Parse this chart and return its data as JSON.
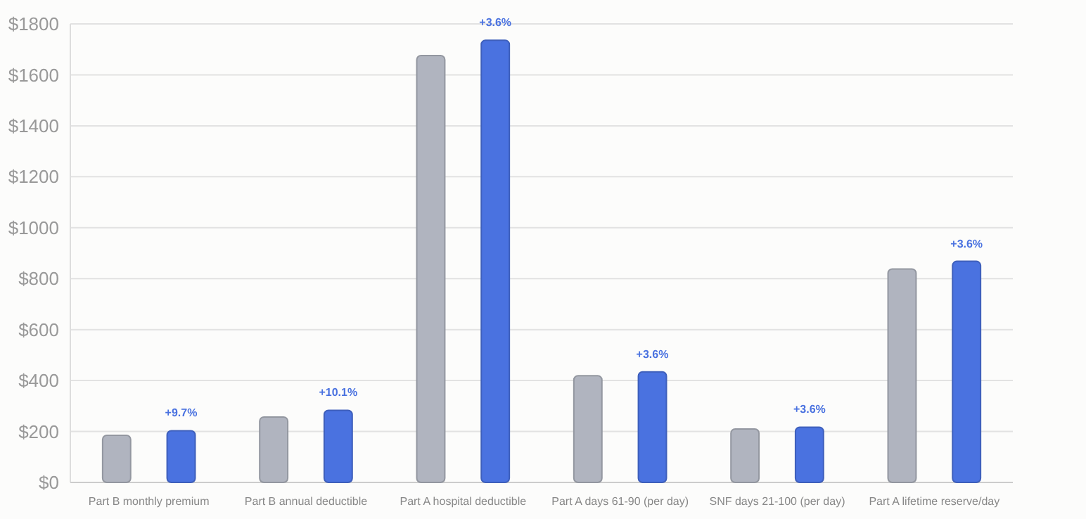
{
  "chart_data": {
    "type": "bar",
    "categories": [
      "Part B monthly premium",
      "Part B annual deductible",
      "Part A hospital deductible",
      "Part A days 61-90 (per day)",
      "SNF days 21-100 (per day)",
      "Part A lifetime reserve/day"
    ],
    "series": [
      {
        "color": "#b0b4bf",
        "values": [
          185,
          257,
          1676,
          419,
          210,
          838
        ]
      },
      {
        "color": "#4a72e0",
        "values": [
          203,
          283,
          1736,
          434,
          217,
          868
        ]
      }
    ],
    "annotations": [
      "+9.7%",
      "+10.1%",
      "+3.6%",
      "+3.6%",
      "+3.6%",
      "+3.6%"
    ],
    "ylim": [
      0,
      1800
    ],
    "yticks": [
      {
        "value": 0,
        "label": "$0"
      },
      {
        "value": 200,
        "label": "$200"
      },
      {
        "value": 400,
        "label": "$400"
      },
      {
        "value": 600,
        "label": "$600"
      },
      {
        "value": 800,
        "label": "$800"
      },
      {
        "value": 1000,
        "label": "$1000"
      },
      {
        "value": 1200,
        "label": "$1200"
      },
      {
        "value": 1400,
        "label": "$1400"
      },
      {
        "value": 1600,
        "label": "$1600"
      },
      {
        "value": 1800,
        "label": "$1800"
      }
    ],
    "grid": "y"
  }
}
